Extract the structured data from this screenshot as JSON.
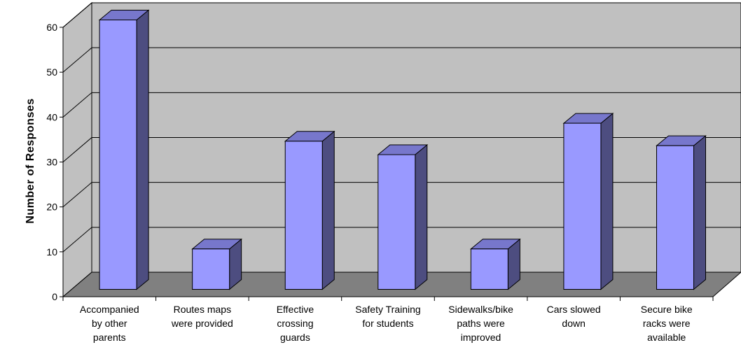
{
  "chart_data": {
    "type": "bar",
    "title": "",
    "xlabel": "",
    "ylabel": "Number of Responses",
    "ylim": [
      0,
      60
    ],
    "yticks": [
      0,
      10,
      20,
      30,
      40,
      50,
      60
    ],
    "grid": true,
    "legend": "none",
    "categories": [
      [
        "Accompanied",
        "by other",
        "parents"
      ],
      [
        "Routes maps",
        "were provided"
      ],
      [
        "Effective",
        "crossing",
        "guards"
      ],
      [
        "Safety Training",
        "for students"
      ],
      [
        "Sidewalks/bike",
        "paths were",
        "improved"
      ],
      [
        "Cars slowed",
        "down"
      ],
      [
        "Secure bike",
        "racks were",
        "available"
      ]
    ],
    "values": [
      60,
      9,
      33,
      30,
      9,
      37,
      32
    ],
    "colors": {
      "bar_front": "#9999ff",
      "bar_side": "#4d4d80",
      "bar_top": "#7777cc",
      "back_wall": "#c0c0c0",
      "floor": "#808080",
      "gridline": "#000000"
    }
  }
}
